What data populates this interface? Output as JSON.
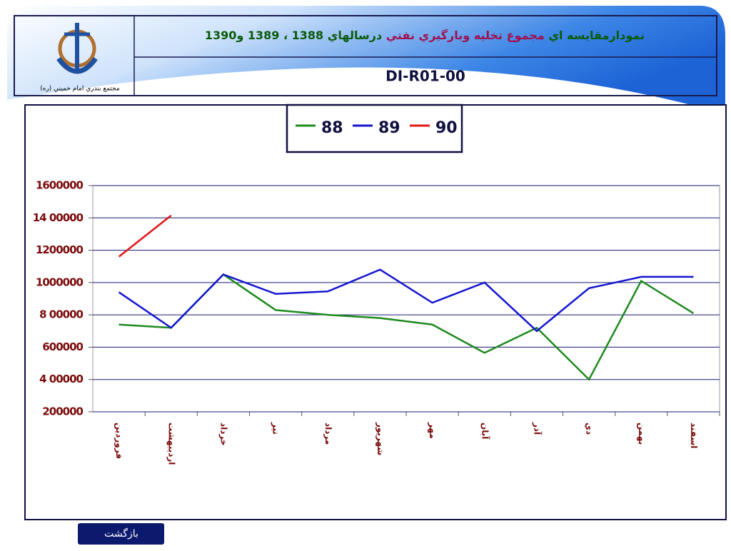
{
  "header": {
    "title_parts": [
      "نمودارمقايسه اي ",
      "مجموع تخليه وبارگيري نفتي",
      " درسالهاي 1388 ، 1389 و1390"
    ],
    "code": "DI-R01-00",
    "logo_caption": "مجتمع بندري امام خميني (ره)"
  },
  "chart_data": {
    "type": "line",
    "categories": [
      "فروردين",
      "ارديبهشت",
      "خرداد",
      "تير",
      "مرداد",
      "شهريور",
      "مهر",
      "آبان",
      "آذر",
      "دي",
      "بهمن",
      "اسفند"
    ],
    "series": [
      {
        "name": "88",
        "color": "#1e8a1e",
        "values": [
          740000,
          720000,
          1050000,
          830000,
          800000,
          780000,
          740000,
          565000,
          720000,
          400000,
          1010000,
          810000
        ]
      },
      {
        "name": "89",
        "color": "#1515d0",
        "values": [
          940000,
          720000,
          1050000,
          930000,
          945000,
          1080000,
          875000,
          1000000,
          700000,
          965000,
          1035000,
          1035000
        ]
      },
      {
        "name": "90",
        "color": "#e01515",
        "values": [
          1160000,
          1415000,
          null,
          null,
          null,
          null,
          null,
          null,
          null,
          null,
          null,
          null
        ]
      }
    ],
    "ylim": [
      200000,
      1600000
    ],
    "yticks": [
      200000,
      {
        "value": 400000,
        "label": "4 00000"
      },
      600000,
      {
        "value": 800000,
        "label": "8 00000"
      },
      1000000,
      1200000,
      {
        "value": 1400000,
        "label": "14 00000"
      },
      1600000
    ],
    "grid": true
  },
  "footer": {
    "button": "بازگشت"
  }
}
